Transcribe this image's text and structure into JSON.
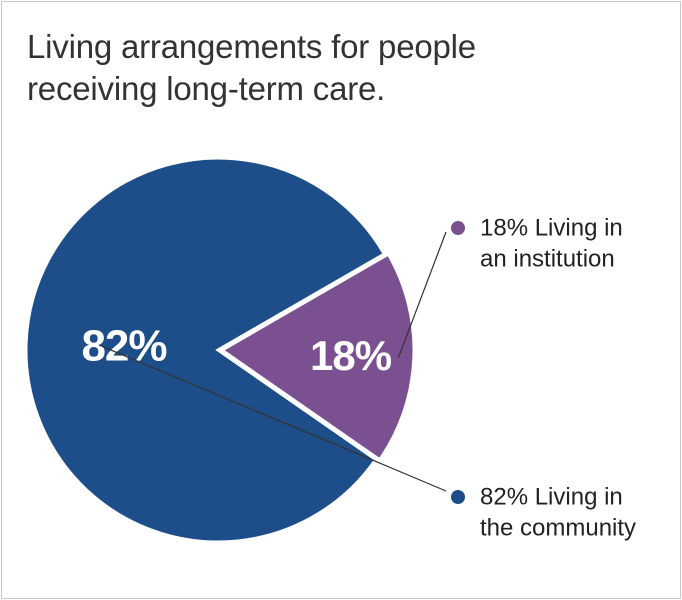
{
  "title": "Living arrangements for people receiving long-term care.",
  "chart_data": {
    "type": "pie",
    "title": "Living arrangements for people receiving long-term care.",
    "slices": [
      {
        "label": "Living in an institution",
        "value": 18,
        "display": "18%",
        "color": "#7a5090",
        "legend_lines": [
          "18% Living in",
          "an institution"
        ]
      },
      {
        "label": "Living in the community",
        "value": 82,
        "display": "82%",
        "color": "#1e4e8a",
        "legend_lines": [
          "82% Living in",
          "the community"
        ]
      }
    ],
    "legend_position": "right",
    "separator_color": "#ffffff",
    "leader_line_color": "#333333"
  }
}
